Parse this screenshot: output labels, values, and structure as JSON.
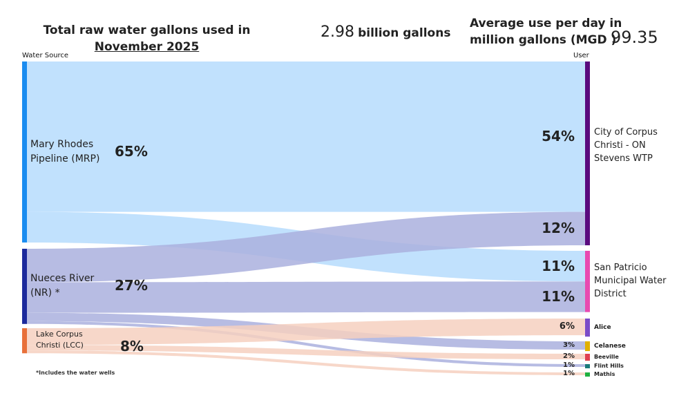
{
  "header": {
    "title_line1": "Total raw water gallons used in",
    "title_line2": "November 2025",
    "total_value": "2.98",
    "total_unit": "billion gallons",
    "avg_label_line1": "Average use per day in",
    "avg_label_line2": "million gallons (MGD )",
    "avg_value": "99.35"
  },
  "axis": {
    "source_label": "Water Source",
    "target_label": "User"
  },
  "footnote": "*Includes the water wells",
  "sources": [
    {
      "id": "mrp",
      "label": "Mary Rhodes Pipeline (MRP)",
      "pct": "65%",
      "color": "#1a8cf0",
      "flow_color": "#b6dcfd"
    },
    {
      "id": "nr",
      "label": "Nueces River (NR) *",
      "pct": "27%",
      "color": "#1c2a9c",
      "flow_color": "#aab0de"
    },
    {
      "id": "lcc",
      "label": "Lake Corpus Christi (LCC)",
      "pct": "8%",
      "color": "#e8703a",
      "flow_color": "#f6d0c0"
    }
  ],
  "targets": [
    {
      "id": "cc",
      "label": "City of Corpus Christi - ON Stevens WTP",
      "color": "#5a0a7e"
    },
    {
      "id": "sp",
      "label": "San Patricio Municipal Water District",
      "color": "#e84ab0"
    },
    {
      "id": "alice",
      "label": "Alice",
      "color": "#7a4cc8"
    },
    {
      "id": "celanese",
      "label": "Celanese",
      "color": "#e0b000"
    },
    {
      "id": "beeville",
      "label": "Beeville",
      "color": "#e04050"
    },
    {
      "id": "flint",
      "label": "Flint Hills",
      "color": "#1a7a7a"
    },
    {
      "id": "mathis",
      "label": "Mathis",
      "color": "#20b040"
    }
  ],
  "flows": [
    {
      "source": "mrp",
      "target": "cc",
      "value": 54,
      "label": "54%"
    },
    {
      "source": "mrp",
      "target": "sp",
      "value": 11,
      "label": "11%"
    },
    {
      "source": "nr",
      "target": "cc",
      "value": 12,
      "label": "12%"
    },
    {
      "source": "nr",
      "target": "sp",
      "value": 11,
      "label": "11%"
    },
    {
      "source": "nr",
      "target": "celanese",
      "value": 3,
      "label": "3%"
    },
    {
      "source": "nr",
      "target": "flint",
      "value": 1,
      "label": "1%"
    },
    {
      "source": "lcc",
      "target": "alice",
      "value": 6,
      "label": "6%"
    },
    {
      "source": "lcc",
      "target": "beeville",
      "value": 2,
      "label": "2%"
    },
    {
      "source": "lcc",
      "target": "mathis",
      "value": 1,
      "label": "1%"
    }
  ]
}
